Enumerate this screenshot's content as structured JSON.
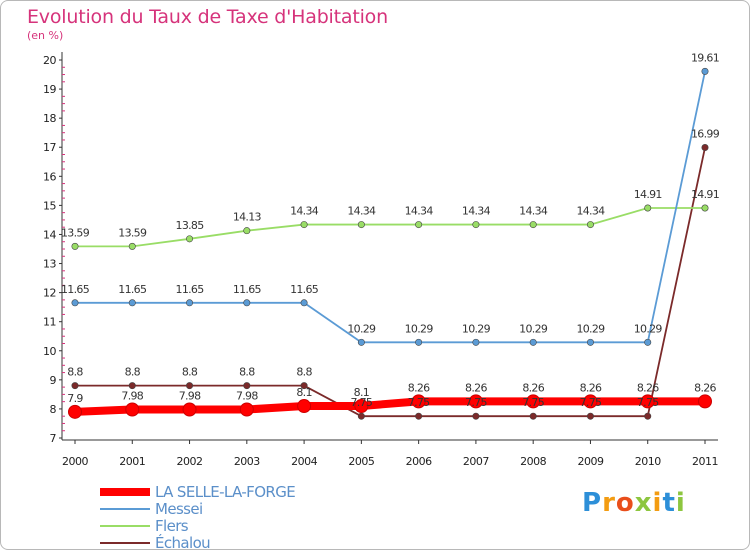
{
  "title": "Evolution du Taux de Taxe d'Habitation",
  "unit_label": "(en %)",
  "logo_text": "Proxiti",
  "chart_data": {
    "type": "line",
    "title": "Evolution du Taux de Taxe d'Habitation",
    "ylabel": "(en %)",
    "xlabel": "",
    "ylim": [
      7,
      20
    ],
    "yticks": [
      7,
      8,
      9,
      10,
      11,
      12,
      13,
      14,
      15,
      16,
      17,
      18,
      19,
      20
    ],
    "grid": false,
    "legend_placement": "bottom-left",
    "x": [
      "2000",
      "2001",
      "2002",
      "2003",
      "2004",
      "2005",
      "2006",
      "2007",
      "2008",
      "2009",
      "2010",
      "2011"
    ],
    "series": [
      {
        "name": "LA SELLE-LA-FORGE",
        "color": "#ff0000",
        "values": [
          7.9,
          7.98,
          7.98,
          7.98,
          8.1,
          8.1,
          8.26,
          8.26,
          8.26,
          8.26,
          8.26,
          8.26
        ],
        "labels": [
          "7.9",
          "7.98",
          "7.98",
          "7.98",
          "8.1",
          "8.1",
          "8.26",
          "8.26",
          "8.26",
          "8.26",
          "8.26",
          "8.26"
        ]
      },
      {
        "name": "Messei",
        "color": "#5b9bd5",
        "values": [
          11.65,
          11.65,
          11.65,
          11.65,
          11.65,
          10.29,
          10.29,
          10.29,
          10.29,
          10.29,
          10.29,
          19.61
        ],
        "labels": [
          "11.65",
          "11.65",
          "11.65",
          "11.65",
          "11.65",
          "10.29",
          "10.29",
          "10.29",
          "10.29",
          "10.29",
          "10.29",
          "19.61"
        ]
      },
      {
        "name": "Flers",
        "color": "#99dd66",
        "values": [
          13.59,
          13.59,
          13.85,
          14.13,
          14.34,
          14.34,
          14.34,
          14.34,
          14.34,
          14.34,
          14.91,
          14.91
        ],
        "labels": [
          "13.59",
          "13.59",
          "13.85",
          "14.13",
          "14.34",
          "14.34",
          "14.34",
          "14.34",
          "14.34",
          "14.34",
          "14.91",
          "14.91"
        ]
      },
      {
        "name": "Échalou",
        "color": "#7b2a2a",
        "values": [
          8.8,
          8.8,
          8.8,
          8.8,
          8.8,
          7.75,
          7.75,
          7.75,
          7.75,
          7.75,
          7.75,
          16.99
        ],
        "labels": [
          "8.8",
          "8.8",
          "8.8",
          "8.8",
          "8.8",
          "7.75",
          "7.75",
          "7.75",
          "7.75",
          "7.75",
          "7.75",
          "16.99"
        ]
      }
    ]
  }
}
